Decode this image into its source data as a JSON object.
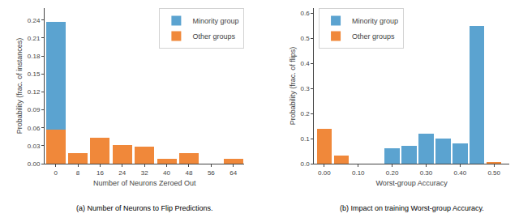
{
  "chart_data": [
    {
      "type": "bar",
      "stacked": true,
      "xlabel": "Number of Neurons Zeroed Out",
      "ylabel": "Probability (frac. of instances)",
      "caption": "(a) Number of Neurons to Flip Predictions.",
      "series": [
        {
          "name": "Other groups",
          "color": "#f0883a",
          "x": [
            0,
            8,
            16,
            24,
            32,
            40,
            48,
            56,
            64
          ],
          "values": [
            0.057,
            0.018,
            0.044,
            0.031,
            0.028,
            0.008,
            0.018,
            0.0,
            0.008
          ]
        },
        {
          "name": "Minority group",
          "color": "#5ba3d0",
          "x": [
            0
          ],
          "values": [
            0.18
          ]
        }
      ],
      "xlim": [
        -4,
        68
      ],
      "xticks": [
        0,
        8,
        16,
        24,
        32,
        40,
        48,
        56,
        64
      ],
      "ylim": [
        0,
        0.26
      ],
      "yticks": [
        {
          "value": 0,
          "label": "0.00"
        },
        0.03,
        0.06,
        0.09,
        0.12,
        0.15,
        0.18,
        0.21,
        0.24
      ],
      "grid": false,
      "legend": "upper right"
    },
    {
      "type": "bar",
      "xlabel": "Worst-group Accuracy",
      "ylabel": "Probability (frac. of flips)",
      "caption": "(b) Impact on training Worst-group Accuracy.",
      "series": [
        {
          "name": "Other groups",
          "color": "#f0883a",
          "x": [
            0.0,
            0.05,
            0.5
          ],
          "values": [
            0.14,
            0.033,
            0.008
          ]
        },
        {
          "name": "Minority group",
          "color": "#5ba3d0",
          "x": [
            0.2,
            0.25,
            0.3,
            0.35,
            0.4,
            0.45
          ],
          "values": [
            0.06,
            0.07,
            0.12,
            0.1,
            0.08,
            0.55
          ]
        }
      ],
      "xlim": [
        -0.03,
        0.545
      ],
      "xticks": [
        {
          "value": 0,
          "label": "0.00"
        },
        {
          "value": 0.1,
          "label": "0.10"
        },
        {
          "value": 0.2,
          "label": "0.20"
        },
        {
          "value": 0.3,
          "label": "0.30"
        },
        {
          "value": 0.4,
          "label": "0.40"
        },
        {
          "value": 0.5,
          "label": "0.50"
        }
      ],
      "ylim": [
        0,
        0.62
      ],
      "yticks": [
        {
          "value": 0,
          "label": "0.0"
        },
        0.1,
        0.2,
        0.3,
        0.4,
        0.5,
        0.6
      ],
      "grid": false,
      "legend": "upper left"
    }
  ]
}
